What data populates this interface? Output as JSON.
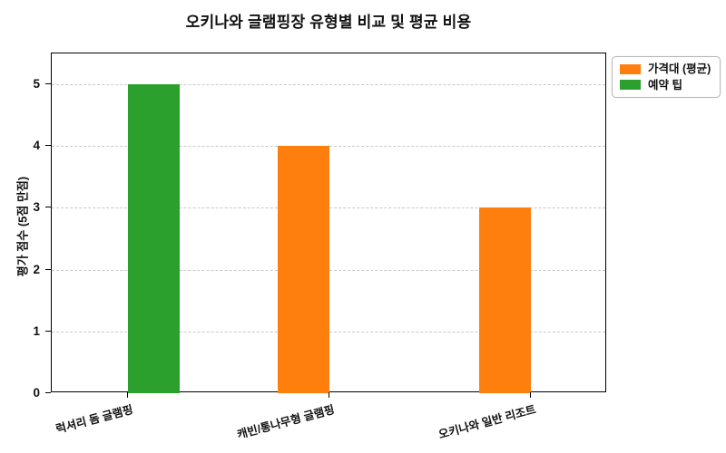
{
  "title": "오키나와 글램핑장 유형별 비교 및 평균 비용",
  "chart_data": {
    "type": "bar",
    "title": "오키나와 글램핑장 유형별 비교 및 평균 비용",
    "categories": [
      "럭셔리 돔 글램핑",
      "캐빈/통나무형 글램핑",
      "오키나와 일반 리조트"
    ],
    "series": [
      {
        "name": "가격대 (평균)",
        "color": "#ff7f0e",
        "values": [
          0,
          4,
          3
        ]
      },
      {
        "name": "예약 팁",
        "color": "#2ca02c",
        "values": [
          5,
          0,
          0
        ]
      }
    ],
    "xlabel": "",
    "ylabel": "평가 점수 (5점 만점)",
    "ylim": [
      0,
      5.5
    ],
    "yticks": [
      0,
      1,
      2,
      3,
      4,
      5
    ],
    "grid": "horizontal-dashed",
    "legend_position": "outside-top-right"
  },
  "colors": {
    "background": "#ffffff",
    "axis": "#000000",
    "gridline": "#c9c9c9",
    "text": "#111111"
  }
}
